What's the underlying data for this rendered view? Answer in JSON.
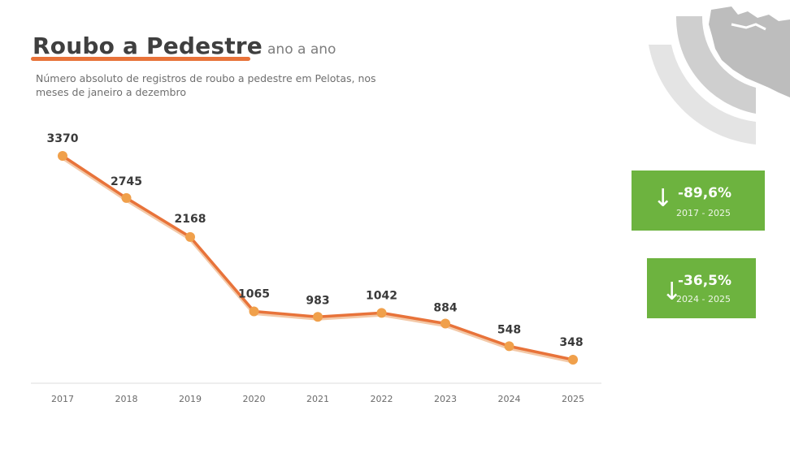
{
  "title": {
    "main": "Roubo a Pedestre",
    "suffix": "ano a ano"
  },
  "subtitle": "Número absoluto de registros de roubo a pedestre em Pelotas, nos meses de janeiro a dezembro",
  "colors": {
    "line": "#e8733a",
    "marker": "#f0a04b",
    "underline": "#e8733a",
    "stat_box": "#6db33f",
    "axis": "#d9d9d9",
    "map_gray": "#bfbfbf",
    "ring_gray": "#e2e2e2"
  },
  "chart_data": {
    "type": "line",
    "x": [
      "2017",
      "2018",
      "2019",
      "2020",
      "2021",
      "2022",
      "2023",
      "2024",
      "2025"
    ],
    "series": [
      {
        "values": [
          3370,
          2745,
          2168,
          1065,
          983,
          1042,
          884,
          548,
          348
        ]
      }
    ],
    "data_labels": [
      "3370",
      "2745",
      "2168",
      "1065",
      "983",
      "1042",
      "884",
      "548",
      "348"
    ],
    "ylim": [
      0,
      4000
    ],
    "grid": false,
    "legend": "none"
  },
  "stats": [
    {
      "value": "-89,6%",
      "range": "2017 - 2025",
      "icon": "arrow-down-icon"
    },
    {
      "value": "-36,5%",
      "range": "2024 - 2025",
      "icon": "arrow-down-icon"
    }
  ],
  "decoration": {
    "icon": "state-map-icon"
  }
}
